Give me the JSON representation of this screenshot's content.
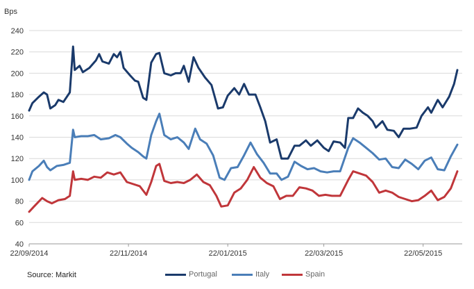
{
  "source_note": "Source: Markit",
  "chart_data": {
    "type": "line",
    "title": "",
    "ylabel": "Bps",
    "xlabel": "",
    "ylim": [
      40,
      240
    ],
    "yticks": [
      40,
      60,
      80,
      100,
      120,
      140,
      160,
      180,
      200,
      220,
      240
    ],
    "xlim": [
      "2014-09-22",
      "2015-06-15"
    ],
    "xticks": [
      {
        "date": "2014-09-22",
        "label": "22/09/2014"
      },
      {
        "date": "2014-11-22",
        "label": "22/11/2014"
      },
      {
        "date": "2015-01-22",
        "label": "22/01/2015"
      },
      {
        "date": "2015-03-22",
        "label": "22/03/2015"
      },
      {
        "date": "2015-05-22",
        "label": "22/05/2015"
      }
    ],
    "grid": true,
    "legend_position": "bottom",
    "series": [
      {
        "name": "Portugal",
        "color": "#1a3a6b",
        "points": [
          [
            "2014-09-22",
            165
          ],
          [
            "2014-09-24",
            172
          ],
          [
            "2014-09-28",
            178
          ],
          [
            "2014-10-01",
            182
          ],
          [
            "2014-10-03",
            180
          ],
          [
            "2014-10-05",
            167
          ],
          [
            "2014-10-08",
            170
          ],
          [
            "2014-10-10",
            175
          ],
          [
            "2014-10-13",
            173
          ],
          [
            "2014-10-17",
            182
          ],
          [
            "2014-10-19",
            225
          ],
          [
            "2014-10-20",
            203
          ],
          [
            "2014-10-23",
            207
          ],
          [
            "2014-10-25",
            201
          ],
          [
            "2014-10-29",
            205
          ],
          [
            "2014-11-02",
            212
          ],
          [
            "2014-11-04",
            218
          ],
          [
            "2014-11-06",
            211
          ],
          [
            "2014-11-10",
            209
          ],
          [
            "2014-11-13",
            218
          ],
          [
            "2014-11-15",
            215
          ],
          [
            "2014-11-17",
            220
          ],
          [
            "2014-11-19",
            205
          ],
          [
            "2014-11-23",
            198
          ],
          [
            "2014-11-26",
            193
          ],
          [
            "2014-11-28",
            192
          ],
          [
            "2014-12-01",
            177
          ],
          [
            "2014-12-03",
            175
          ],
          [
            "2014-12-06",
            210
          ],
          [
            "2014-12-09",
            218
          ],
          [
            "2014-12-11",
            219
          ],
          [
            "2014-12-14",
            200
          ],
          [
            "2014-12-18",
            198
          ],
          [
            "2014-12-21",
            200
          ],
          [
            "2014-12-24",
            200
          ],
          [
            "2014-12-26",
            207
          ],
          [
            "2014-12-29",
            192
          ],
          [
            "2015-01-01",
            215
          ],
          [
            "2015-01-04",
            205
          ],
          [
            "2015-01-08",
            196
          ],
          [
            "2015-01-12",
            189
          ],
          [
            "2015-01-16",
            167
          ],
          [
            "2015-01-19",
            168
          ],
          [
            "2015-01-22",
            179
          ],
          [
            "2015-01-26",
            186
          ],
          [
            "2015-01-29",
            180
          ],
          [
            "2015-02-01",
            190
          ],
          [
            "2015-02-04",
            180
          ],
          [
            "2015-02-08",
            180
          ],
          [
            "2015-02-11",
            168
          ],
          [
            "2015-02-14",
            155
          ],
          [
            "2015-02-17",
            135
          ],
          [
            "2015-02-21",
            138
          ],
          [
            "2015-02-24",
            120
          ],
          [
            "2015-02-28",
            120
          ],
          [
            "2015-03-04",
            132
          ],
          [
            "2015-03-07",
            132
          ],
          [
            "2015-03-11",
            137
          ],
          [
            "2015-03-14",
            132
          ],
          [
            "2015-03-18",
            137
          ],
          [
            "2015-03-22",
            130
          ],
          [
            "2015-03-25",
            127
          ],
          [
            "2015-03-28",
            136
          ],
          [
            "2015-04-01",
            135
          ],
          [
            "2015-04-04",
            130
          ],
          [
            "2015-04-06",
            158
          ],
          [
            "2015-04-09",
            158
          ],
          [
            "2015-04-12",
            167
          ],
          [
            "2015-04-15",
            163
          ],
          [
            "2015-04-18",
            160
          ],
          [
            "2015-04-21",
            155
          ],
          [
            "2015-04-23",
            149
          ],
          [
            "2015-04-27",
            155
          ],
          [
            "2015-04-30",
            147
          ],
          [
            "2015-05-04",
            146
          ],
          [
            "2015-05-07",
            140
          ],
          [
            "2015-05-10",
            148
          ],
          [
            "2015-05-14",
            148
          ],
          [
            "2015-05-18",
            149
          ],
          [
            "2015-05-21",
            160
          ],
          [
            "2015-05-25",
            168
          ],
          [
            "2015-05-27",
            163
          ],
          [
            "2015-05-31",
            175
          ],
          [
            "2015-06-03",
            168
          ],
          [
            "2015-06-07",
            178
          ],
          [
            "2015-06-10",
            190
          ],
          [
            "2015-06-12",
            203
          ]
        ]
      },
      {
        "name": "Italy",
        "color": "#4a7eb8",
        "points": [
          [
            "2014-09-22",
            100
          ],
          [
            "2014-09-24",
            108
          ],
          [
            "2014-09-28",
            113
          ],
          [
            "2014-10-01",
            118
          ],
          [
            "2014-10-03",
            112
          ],
          [
            "2014-10-05",
            109
          ],
          [
            "2014-10-09",
            113
          ],
          [
            "2014-10-13",
            114
          ],
          [
            "2014-10-17",
            116
          ],
          [
            "2014-10-19",
            147
          ],
          [
            "2014-10-20",
            140
          ],
          [
            "2014-10-24",
            141
          ],
          [
            "2014-10-28",
            141
          ],
          [
            "2014-11-01",
            142
          ],
          [
            "2014-11-05",
            138
          ],
          [
            "2014-11-10",
            139
          ],
          [
            "2014-11-14",
            142
          ],
          [
            "2014-11-17",
            140
          ],
          [
            "2014-11-21",
            134
          ],
          [
            "2014-11-24",
            130
          ],
          [
            "2014-11-28",
            126
          ],
          [
            "2014-12-01",
            122
          ],
          [
            "2014-12-03",
            120
          ],
          [
            "2014-12-06",
            142
          ],
          [
            "2014-12-09",
            155
          ],
          [
            "2014-12-11",
            162
          ],
          [
            "2014-12-14",
            142
          ],
          [
            "2014-12-18",
            138
          ],
          [
            "2014-12-22",
            140
          ],
          [
            "2014-12-26",
            135
          ],
          [
            "2014-12-29",
            129
          ],
          [
            "2015-01-02",
            148
          ],
          [
            "2015-01-05",
            138
          ],
          [
            "2015-01-09",
            134
          ],
          [
            "2015-01-13",
            123
          ],
          [
            "2015-01-17",
            102
          ],
          [
            "2015-01-20",
            100
          ],
          [
            "2015-01-24",
            111
          ],
          [
            "2015-01-28",
            112
          ],
          [
            "2015-02-01",
            123
          ],
          [
            "2015-02-05",
            135
          ],
          [
            "2015-02-09",
            124
          ],
          [
            "2015-02-13",
            116
          ],
          [
            "2015-02-17",
            106
          ],
          [
            "2015-02-21",
            106
          ],
          [
            "2015-02-24",
            100
          ],
          [
            "2015-02-28",
            103
          ],
          [
            "2015-03-04",
            117
          ],
          [
            "2015-03-08",
            113
          ],
          [
            "2015-03-12",
            110
          ],
          [
            "2015-03-16",
            111
          ],
          [
            "2015-03-20",
            108
          ],
          [
            "2015-03-24",
            107
          ],
          [
            "2015-03-28",
            108
          ],
          [
            "2015-04-01",
            108
          ],
          [
            "2015-04-06",
            130
          ],
          [
            "2015-04-09",
            139
          ],
          [
            "2015-04-13",
            135
          ],
          [
            "2015-04-17",
            130
          ],
          [
            "2015-04-21",
            125
          ],
          [
            "2015-04-25",
            119
          ],
          [
            "2015-04-29",
            120
          ],
          [
            "2015-05-03",
            112
          ],
          [
            "2015-05-07",
            111
          ],
          [
            "2015-05-11",
            119
          ],
          [
            "2015-05-15",
            115
          ],
          [
            "2015-05-19",
            110
          ],
          [
            "2015-05-23",
            118
          ],
          [
            "2015-05-27",
            121
          ],
          [
            "2015-05-31",
            110
          ],
          [
            "2015-06-04",
            109
          ],
          [
            "2015-06-08",
            122
          ],
          [
            "2015-06-12",
            133
          ]
        ]
      },
      {
        "name": "Spain",
        "color": "#c0363a",
        "points": [
          [
            "2014-09-22",
            70
          ],
          [
            "2014-09-25",
            75
          ],
          [
            "2014-09-30",
            83
          ],
          [
            "2014-10-03",
            80
          ],
          [
            "2014-10-06",
            78
          ],
          [
            "2014-10-10",
            81
          ],
          [
            "2014-10-14",
            82
          ],
          [
            "2014-10-17",
            85
          ],
          [
            "2014-10-19",
            108
          ],
          [
            "2014-10-20",
            100
          ],
          [
            "2014-10-24",
            101
          ],
          [
            "2014-10-28",
            100
          ],
          [
            "2014-11-01",
            103
          ],
          [
            "2014-11-05",
            102
          ],
          [
            "2014-11-09",
            107
          ],
          [
            "2014-11-13",
            105
          ],
          [
            "2014-11-17",
            107
          ],
          [
            "2014-11-21",
            98
          ],
          [
            "2014-11-25",
            96
          ],
          [
            "2014-11-29",
            94
          ],
          [
            "2014-12-03",
            86
          ],
          [
            "2014-12-06",
            98
          ],
          [
            "2014-12-09",
            113
          ],
          [
            "2014-12-11",
            115
          ],
          [
            "2014-12-14",
            99
          ],
          [
            "2014-12-18",
            97
          ],
          [
            "2014-12-22",
            98
          ],
          [
            "2014-12-26",
            97
          ],
          [
            "2014-12-30",
            100
          ],
          [
            "2015-01-03",
            105
          ],
          [
            "2015-01-07",
            98
          ],
          [
            "2015-01-11",
            95
          ],
          [
            "2015-01-15",
            85
          ],
          [
            "2015-01-18",
            75
          ],
          [
            "2015-01-22",
            76
          ],
          [
            "2015-01-26",
            88
          ],
          [
            "2015-01-30",
            92
          ],
          [
            "2015-02-03",
            100
          ],
          [
            "2015-02-07",
            112
          ],
          [
            "2015-02-11",
            102
          ],
          [
            "2015-02-15",
            97
          ],
          [
            "2015-02-19",
            94
          ],
          [
            "2015-02-23",
            82
          ],
          [
            "2015-02-27",
            85
          ],
          [
            "2015-03-03",
            85
          ],
          [
            "2015-03-07",
            93
          ],
          [
            "2015-03-11",
            92
          ],
          [
            "2015-03-15",
            90
          ],
          [
            "2015-03-19",
            85
          ],
          [
            "2015-03-23",
            86
          ],
          [
            "2015-03-27",
            85
          ],
          [
            "2015-04-01",
            85
          ],
          [
            "2015-04-06",
            100
          ],
          [
            "2015-04-09",
            108
          ],
          [
            "2015-04-13",
            106
          ],
          [
            "2015-04-17",
            104
          ],
          [
            "2015-04-21",
            98
          ],
          [
            "2015-04-25",
            88
          ],
          [
            "2015-04-29",
            90
          ],
          [
            "2015-05-03",
            88
          ],
          [
            "2015-05-07",
            84
          ],
          [
            "2015-05-11",
            82
          ],
          [
            "2015-05-15",
            80
          ],
          [
            "2015-05-19",
            81
          ],
          [
            "2015-05-23",
            85
          ],
          [
            "2015-05-27",
            90
          ],
          [
            "2015-05-31",
            81
          ],
          [
            "2015-06-04",
            84
          ],
          [
            "2015-06-08",
            92
          ],
          [
            "2015-06-12",
            108
          ]
        ]
      }
    ]
  }
}
